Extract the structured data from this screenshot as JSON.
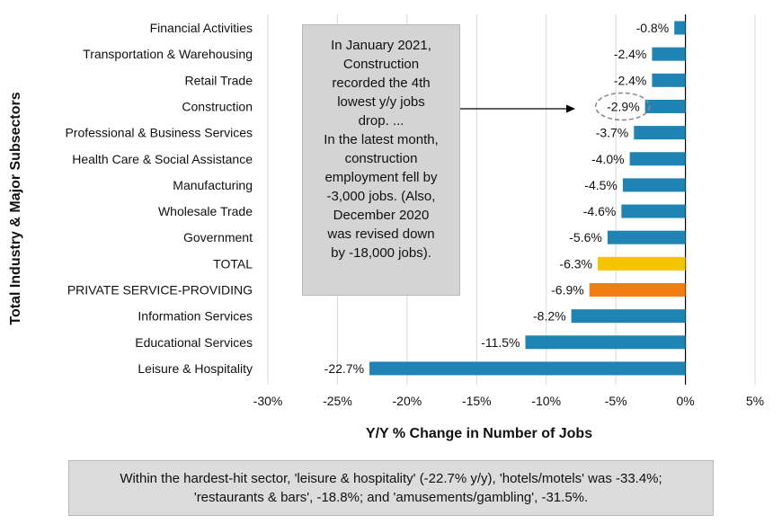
{
  "chart_data": {
    "type": "bar",
    "orientation": "horizontal",
    "categories": [
      "Financial Activities",
      "Transportation & Warehousing",
      "Retail Trade",
      "Construction",
      "Professional & Business Services",
      "Health Care & Social Assistance",
      "Manufacturing",
      "Wholesale Trade",
      "Government",
      "TOTAL",
      "PRIVATE SERVICE-PROVIDING",
      "Information Services",
      "Educational Services",
      "Leisure & Hospitality"
    ],
    "values": [
      -0.8,
      -2.4,
      -2.4,
      -2.9,
      -3.7,
      -4.0,
      -4.5,
      -4.6,
      -5.6,
      -6.3,
      -6.9,
      -8.2,
      -11.5,
      -22.7
    ],
    "value_labels": [
      "-0.8%",
      "-2.4%",
      "-2.4%",
      "-2.9%",
      "-3.7%",
      "-4.0%",
      "-4.5%",
      "-4.6%",
      "-5.6%",
      "-6.3%",
      "-6.9%",
      "-8.2%",
      "-11.5%",
      "-22.7%"
    ],
    "bar_colors": [
      "#1f84b4",
      "#1f84b4",
      "#1f84b4",
      "#1f84b4",
      "#1f84b4",
      "#1f84b4",
      "#1f84b4",
      "#1f84b4",
      "#1f84b4",
      "#f5c400",
      "#f07d12",
      "#1f84b4",
      "#1f84b4",
      "#1f84b4"
    ],
    "highlight_category": "Construction",
    "xlabel": "Y/Y % Change in Number of Jobs",
    "ylabel": "Total Industry & Major Subsectors",
    "xlim": [
      -30,
      5
    ],
    "xticks": [
      -30,
      -25,
      -20,
      -15,
      -10,
      -5,
      0,
      5
    ],
    "xtick_labels": [
      "-30%",
      "-25%",
      "-20%",
      "-15%",
      "-10%",
      "-5%",
      "0%",
      "5%"
    ],
    "grid": "vertical"
  },
  "callout": {
    "lines": [
      "In January 2021,",
      "Construction",
      "recorded the 4th",
      "lowest y/y jobs",
      "drop. ...",
      "In the latest month,",
      "construction",
      "employment fell by",
      "-3,000 jobs. (Also,",
      "December 2020",
      "was revised down",
      "by -18,000 jobs)."
    ]
  },
  "note": {
    "line1": "Within the hardest-hit sector, 'leisure & hospitality' (-22.7% y/y), 'hotels/motels' was -33.4%;",
    "line2": "'restaurants & bars', -18.8%; and 'amusements/gambling', -31.5%."
  },
  "colors": {
    "series": "#1f84b4",
    "total": "#f5c400",
    "private": "#f07d12",
    "grid": "#d9d9d9",
    "highlight_ring": "#8c8c8c"
  }
}
